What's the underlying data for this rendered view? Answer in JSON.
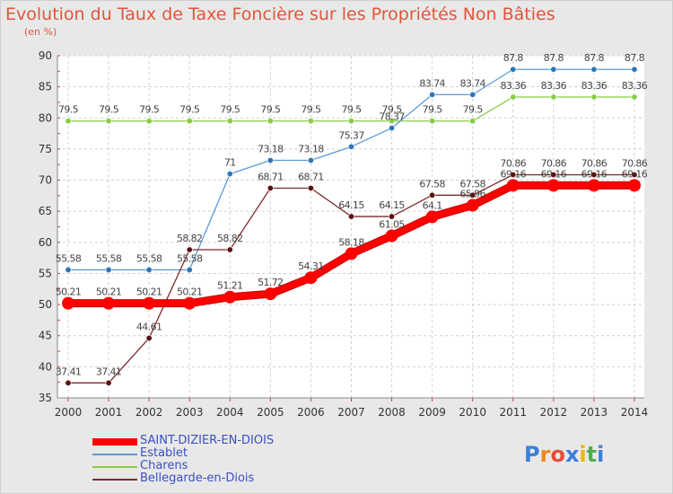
{
  "chart_data": {
    "type": "line",
    "title": "Evolution du Taux de Taxe Foncière sur les Propriétés Non Bâties",
    "ylabel": "(en %)",
    "xlabel": "",
    "ylim": [
      35,
      90
    ],
    "yticks": [
      35,
      40,
      45,
      50,
      55,
      60,
      65,
      70,
      75,
      80,
      85,
      90
    ],
    "categories": [
      "2000",
      "2001",
      "2002",
      "2003",
      "2004",
      "2005",
      "2006",
      "2007",
      "2008",
      "2009",
      "2010",
      "2011",
      "2012",
      "2013",
      "2014"
    ],
    "series": [
      {
        "name": "Charens",
        "color": "#88cc44",
        "dot": "#88cc44",
        "values": [
          79.5,
          79.5,
          79.5,
          79.5,
          79.5,
          79.5,
          79.5,
          79.5,
          79.5,
          79.5,
          79.5,
          83.36,
          83.36,
          83.36,
          83.36
        ],
        "labels": [
          "79.5",
          "79.5",
          "79.5",
          "79.5",
          "79.5",
          "79.5",
          "79.5",
          "79.5",
          "79.5",
          "79.5",
          "79.5",
          "83.36",
          "83.36",
          "83.36",
          "83.36"
        ]
      },
      {
        "name": "Establet",
        "color": "#5b9bd5",
        "dot": "#2e75b6",
        "values": [
          55.58,
          55.58,
          55.58,
          55.58,
          71,
          73.18,
          73.18,
          75.37,
          78.37,
          83.74,
          83.74,
          87.8,
          87.8,
          87.8,
          87.8
        ],
        "labels": [
          "55.58",
          "55.58",
          "55.58",
          "55.58",
          "71",
          "73.18",
          "73.18",
          "75.37",
          "78.37",
          "83.74",
          "83.74",
          "87.8",
          "87.8",
          "87.8",
          "87.8"
        ]
      },
      {
        "name": "Bellegarde-en-Diois",
        "color": "#7b2b2b",
        "dot": "#5c1010",
        "values": [
          37.41,
          37.41,
          44.61,
          58.82,
          58.82,
          68.71,
          68.71,
          64.15,
          64.15,
          67.58,
          67.58,
          70.86,
          70.86,
          70.86,
          70.86
        ],
        "labels": [
          "37.41",
          "37.41",
          "44.61",
          "58.82",
          "58.82",
          "68.71",
          "68.71",
          "64.15",
          "64.15",
          "67.58",
          "67.58",
          "70.86",
          "70.86",
          "70.86",
          "70.86"
        ]
      },
      {
        "name": "SAINT-DIZIER-EN-DIOIS",
        "color": "#ff0000",
        "dot": "#ff0000",
        "values": [
          50.21,
          50.21,
          50.21,
          50.21,
          51.21,
          51.72,
          54.31,
          58.18,
          61.05,
          64.1,
          65.96,
          69.16,
          69.16,
          69.16,
          69.16
        ],
        "labels": [
          "50.21",
          "50.21",
          "50.21",
          "50.21",
          "51.21",
          "51.72",
          "54.31",
          "58.18",
          "61.05",
          "64.1",
          "65.96",
          "69.16",
          "69.16",
          "69.16",
          "69.16"
        ]
      }
    ],
    "legend": [
      "SAINT-DIZIER-EN-DIOIS",
      "Establet",
      "Charens",
      "Bellegarde-en-Diois"
    ],
    "legend_colors": [
      "#ff0000",
      "#5b9bd5",
      "#88cc44",
      "#7b2b2b"
    ]
  },
  "logo": {
    "text": "Proxiti",
    "letters": [
      [
        "P",
        "#3c7fd6"
      ],
      [
        "r",
        "#ee8a1e"
      ],
      [
        "o",
        "#e84c3d"
      ],
      [
        "x",
        "#3c7fd6"
      ],
      [
        "i",
        "#f4b400"
      ],
      [
        "t",
        "#4caf50"
      ],
      [
        "i",
        "#3c7fd6"
      ]
    ]
  }
}
